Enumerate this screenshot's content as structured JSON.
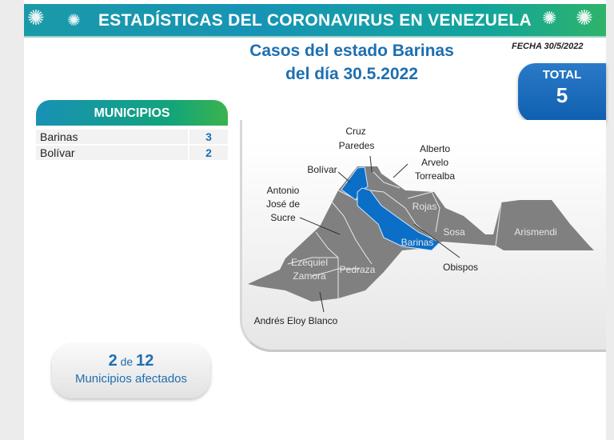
{
  "header": {
    "title": "ESTADÍSTICAS DEL CORONAVIRUS EN VENEZUELA"
  },
  "subtitle": {
    "line1": "Casos del estado Barinas",
    "line2": "del día 30.5.2022"
  },
  "fecha": "FECHA 30/5/2022",
  "total": {
    "label": "TOTAL",
    "value": "5"
  },
  "municipios": {
    "header": "MUNICIPIOS",
    "rows": [
      {
        "name": "Barinas",
        "value": "3"
      },
      {
        "name": "Bolívar",
        "value": "2"
      }
    ]
  },
  "map": {
    "highlight_color": "#0b6ec7",
    "base_color": "#808080",
    "labels": {
      "cruz": "Cruz",
      "paredes": "Paredes",
      "alberto": "Alberto",
      "arvelo": "Arvelo",
      "torrealba": "Torrealba",
      "bolivar": "Bolívar",
      "antonio": "Antonio",
      "jose": "José de",
      "sucre": "Sucre",
      "rojas": "Rojas",
      "sosa": "Sosa",
      "arismendi": "Arismendi",
      "barinas": "Barinas",
      "obispos": "Obispos",
      "ezequiel": "Ezequiel",
      "zamora": "Zamora",
      "pedraza": "Pedraza",
      "andres": "Andrés Eloy Blanco"
    }
  },
  "affected": {
    "count": "2",
    "of": "de",
    "total": "12",
    "label": "Municipios afectados"
  }
}
